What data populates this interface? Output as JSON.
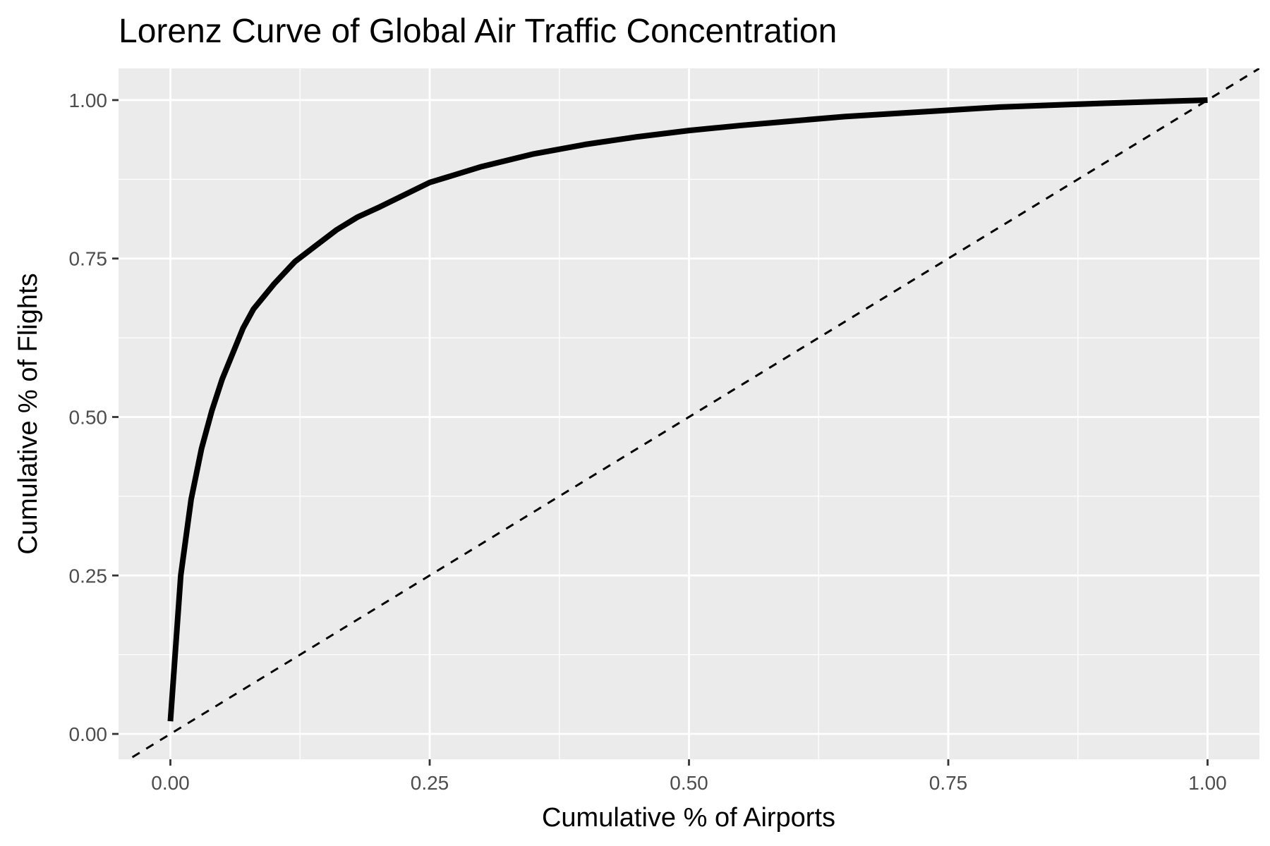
{
  "chart_data": {
    "type": "line",
    "title": "Lorenz Curve of Global Air Traffic Concentration",
    "xlabel": "Cumulative % of Airports",
    "ylabel": "Cumulative % of Flights",
    "xlim": [
      -0.05,
      1.05
    ],
    "ylim": [
      -0.04,
      1.05
    ],
    "x_ticks": [
      "0.00",
      "0.25",
      "0.50",
      "0.75",
      "1.00"
    ],
    "y_ticks": [
      "0.00",
      "0.25",
      "0.50",
      "0.75",
      "1.00"
    ],
    "grid": true,
    "legend": "none",
    "series": [
      {
        "style": "solid",
        "color": "#000000",
        "x": [
          0.0,
          0.01,
          0.02,
          0.03,
          0.04,
          0.05,
          0.06,
          0.07,
          0.08,
          0.09,
          0.1,
          0.12,
          0.14,
          0.16,
          0.18,
          0.2,
          0.25,
          0.3,
          0.35,
          0.4,
          0.45,
          0.5,
          0.55,
          0.6,
          0.65,
          0.7,
          0.75,
          0.8,
          0.9,
          1.0
        ],
        "y": [
          0.02,
          0.25,
          0.37,
          0.45,
          0.51,
          0.56,
          0.6,
          0.64,
          0.67,
          0.69,
          0.71,
          0.745,
          0.77,
          0.795,
          0.815,
          0.83,
          0.87,
          0.895,
          0.915,
          0.93,
          0.942,
          0.952,
          0.96,
          0.967,
          0.974,
          0.979,
          0.984,
          0.989,
          0.995,
          1.0
        ]
      },
      {
        "style": "dashed",
        "color": "#000000",
        "x": [
          -0.05,
          1.05
        ],
        "y": [
          -0.05,
          1.05
        ]
      }
    ]
  }
}
